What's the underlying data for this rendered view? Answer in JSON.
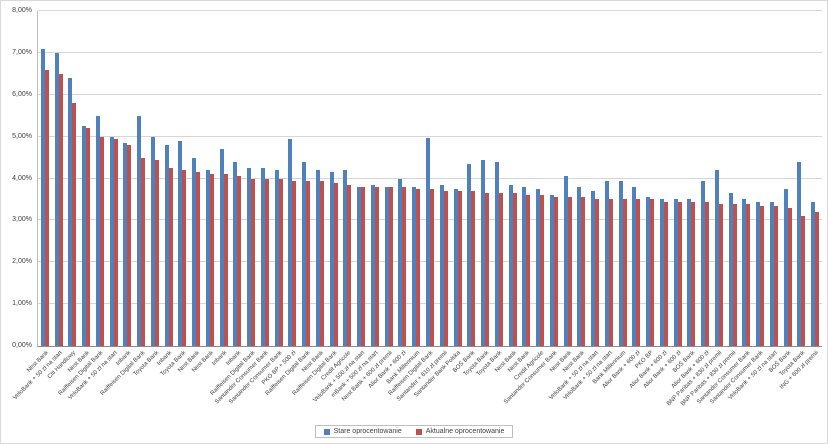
{
  "chart_data": {
    "type": "bar",
    "title": "",
    "xlabel": "",
    "ylabel": "",
    "ylim": [
      0,
      8
    ],
    "grid": true,
    "legend_position": "bottom",
    "y_ticks": [
      "0,00%",
      "1,00%",
      "2,00%",
      "3,00%",
      "4,00%",
      "5,00%",
      "6,00%",
      "7,00%",
      "8,00%"
    ],
    "categories": [
      "Nest Bank",
      "VeloBank + 50 zł na start",
      "Citi Handlowy",
      "Nest Bank",
      "Raiffeisen Digital Bank",
      "VeloBank + 50 zł na start",
      "Inbank",
      "Raiffeisen Digital Bank",
      "Toyota Bank",
      "Inbank",
      "Toyota Bank",
      "Nest Bank",
      "Nest Bank",
      "Inbank",
      "Inbank",
      "Raiffeisen Digital Bank",
      "Santander Consumer Bank",
      "Santander Consumer Bank",
      "PKO BP + 500 zł",
      "Raiffeisen Digital Bank",
      "Nest Bank",
      "Raiffeisen Digital Bank",
      "Credit Agricole",
      "VeloBank + 500 zł na start",
      "mBank + 500 zł na start",
      "Nest Bank + 600 zł premii",
      "Alior Bank + 600 zł",
      "Bank Millennium",
      "Raiffeisen Digital Bank",
      "Santander + 610 zł premii",
      "Santander Bank Polska",
      "BOŚ Bank",
      "Toyota Bank",
      "Toyota Bank",
      "Nest Bank",
      "Nest Bank",
      "Credit Agricole",
      "Santander Consumer Bank",
      "Nest Bank",
      "Nest Bank",
      "VeloBank + 50 zł na start",
      "VeloBank + 50 zł na start",
      "Bank Millennium",
      "Alior Bank + 600 zł",
      "PKO BP",
      "Alior Bank + 600 zł",
      "Alior Bank + 600 zł",
      "BOŚ Bank",
      "Alior Bank + 600 zł",
      "BNP Paribas + 830 zł premii",
      "BNP Paribas + 830 zł premii",
      "Santander Consumer Bank",
      "Santander Consumer Bank",
      "VeloBank + 50 zł na start",
      "BOŚ Bank",
      "Toyota Bank",
      "ING + 600 zł premii"
    ],
    "series": [
      {
        "name": "Stare oprocentowanie",
        "color": "#4f81bd",
        "values": [
          7.1,
          7.0,
          6.4,
          5.25,
          5.5,
          5.0,
          4.85,
          5.5,
          5.0,
          4.8,
          4.9,
          4.5,
          4.2,
          4.7,
          4.4,
          4.25,
          4.25,
          4.2,
          4.95,
          4.4,
          4.2,
          4.15,
          4.2,
          3.8,
          3.85,
          3.8,
          4.0,
          3.8,
          4.97,
          3.85,
          3.75,
          4.35,
          4.45,
          4.4,
          3.85,
          3.8,
          3.75,
          3.6,
          4.05,
          3.8,
          3.7,
          3.95,
          3.95,
          3.8,
          3.55,
          3.5,
          3.5,
          3.5,
          3.95,
          4.2,
          3.65,
          3.5,
          3.45,
          3.45,
          3.75,
          4.4,
          3.45
        ]
      },
      {
        "name": "Aktualne oprocentowanie",
        "color": "#c0504d",
        "values": [
          6.6,
          6.5,
          5.8,
          5.2,
          5.0,
          4.95,
          4.8,
          4.5,
          4.45,
          4.25,
          4.2,
          4.15,
          4.1,
          4.1,
          4.05,
          4.0,
          4.0,
          4.0,
          3.95,
          3.95,
          3.95,
          3.9,
          3.85,
          3.8,
          3.8,
          3.8,
          3.8,
          3.75,
          3.75,
          3.7,
          3.7,
          3.7,
          3.65,
          3.65,
          3.65,
          3.6,
          3.6,
          3.55,
          3.55,
          3.55,
          3.5,
          3.5,
          3.5,
          3.5,
          3.5,
          3.45,
          3.45,
          3.45,
          3.45,
          3.4,
          3.4,
          3.4,
          3.35,
          3.35,
          3.3,
          3.1,
          3.2
        ]
      }
    ]
  }
}
